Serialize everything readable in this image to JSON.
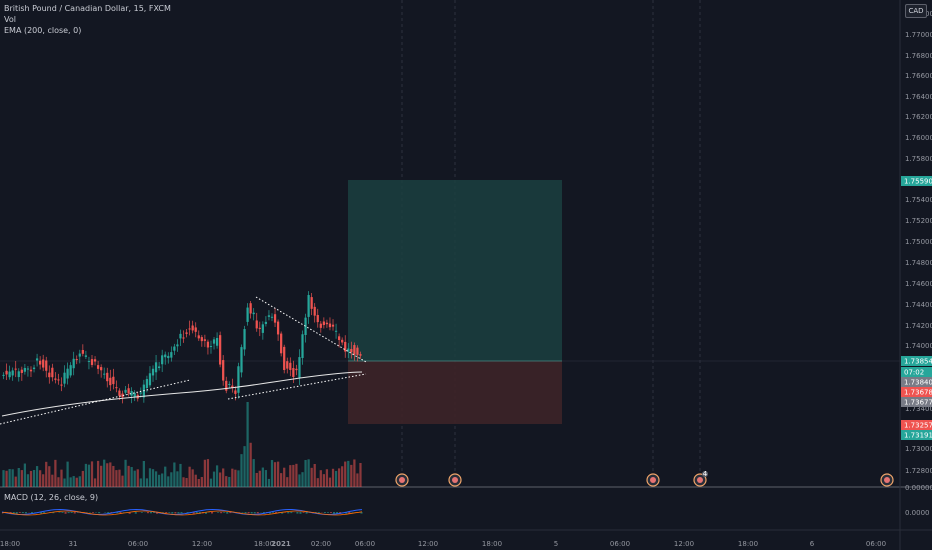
{
  "header": {
    "symbol_line": "British Pound / Canadian Dollar, 15, FXCM",
    "vol_label": "Vol",
    "ema_label": "EMA (200, close, 0)",
    "currency_badge": "CAD"
  },
  "macd": {
    "label": "MACD (12, 26, close, 9)",
    "zero_tick": "0.0000"
  },
  "price_axis": {
    "ticks": [
      "1.77200",
      "1.77000",
      "1.76800",
      "1.76600",
      "1.76400",
      "1.76200",
      "1.76000",
      "1.75800",
      "1.75400",
      "1.75200",
      "1.75000",
      "1.74800",
      "1.74600",
      "1.74400",
      "1.74200",
      "1.74000",
      "1.73400",
      "1.73000",
      "1.72800"
    ],
    "cut_tick": "0.00000"
  },
  "price_tags": [
    {
      "text": "1.75590",
      "color": "#26a69a"
    },
    {
      "text": "1.73854",
      "color": "#26a69a"
    },
    {
      "text": "07:02",
      "color": "#26a69a"
    },
    {
      "text": "1.73840",
      "color": "#787b86"
    },
    {
      "text": "1.73678",
      "color": "#ef5350"
    },
    {
      "text": "1.73677",
      "color": "#787b86"
    },
    {
      "text": "1.73257",
      "color": "#ef5350"
    },
    {
      "text": "1.73191",
      "color": "#26a69a"
    }
  ],
  "time_axis": [
    "18:00",
    "31",
    "06:00",
    "12:00",
    "18:00",
    "2021",
    "02:00",
    "06:00",
    "12:00",
    "18:00",
    "5",
    "06:00",
    "12:00",
    "18:00",
    "6",
    "06:00"
  ],
  "events": {
    "count": 5,
    "badge_number": "4"
  },
  "colors": {
    "up": "#26a69a",
    "down": "#ef5350",
    "target_zone": "#1b3f3f",
    "stop_zone": "#3d2328",
    "ema": "#e6e6e6",
    "trend_line": "#ffffff",
    "macd_line": "#2962ff",
    "signal_line": "#ff6d00"
  }
}
